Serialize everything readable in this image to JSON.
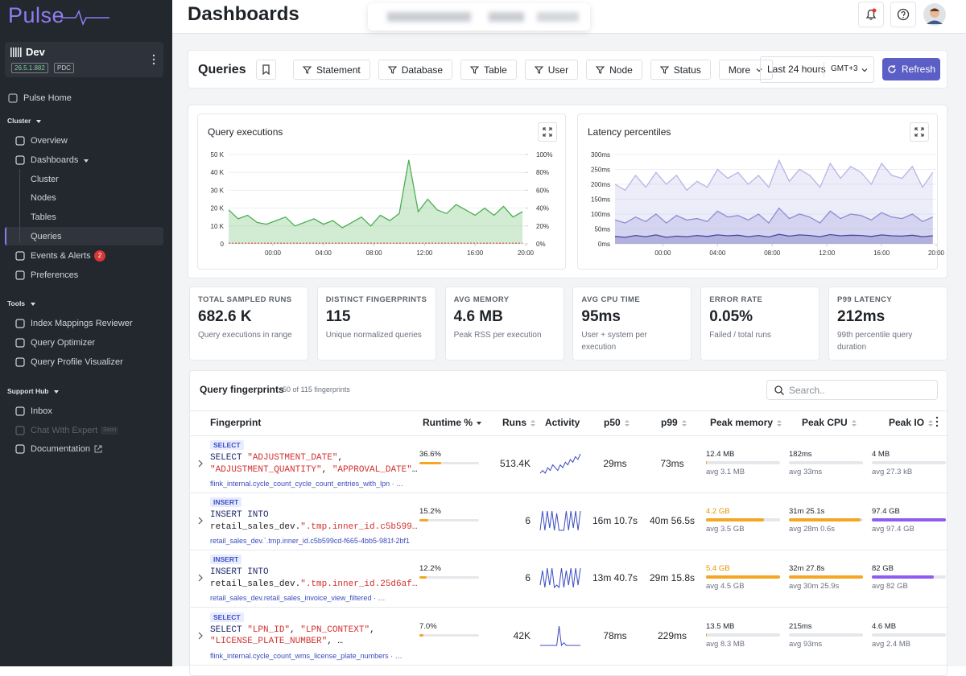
{
  "sidebar": {
    "logo": "Pulse",
    "env": {
      "name": "Dev",
      "version": "26.5.1.882",
      "tag": "PDC"
    },
    "home": "Pulse Home",
    "sections": [
      {
        "title": "Cluster",
        "items": [
          {
            "label": "Overview"
          },
          {
            "label": "Dashboards",
            "children": [
              {
                "label": "Cluster"
              },
              {
                "label": "Nodes"
              },
              {
                "label": "Tables"
              },
              {
                "label": "Queries",
                "active": true
              }
            ]
          },
          {
            "label": "Events & Alerts",
            "badge": 2
          },
          {
            "label": "Preferences"
          }
        ]
      },
      {
        "title": "Tools",
        "items": [
          {
            "label": "Index Mappings Reviewer"
          },
          {
            "label": "Query Optimizer"
          },
          {
            "label": "Query Profile Visualizer"
          }
        ]
      },
      {
        "title": "Support Hub",
        "items": [
          {
            "label": "Inbox"
          },
          {
            "label": "Chat With Expert",
            "badge": "Soon",
            "disabled": true
          },
          {
            "label": "Documentation",
            "external": true
          }
        ]
      }
    ]
  },
  "header": {
    "title": "Dashboards"
  },
  "toolbar": {
    "title": "Queries",
    "filters": [
      "Statement",
      "Database",
      "Table",
      "User",
      "Node",
      "Status"
    ],
    "more": "More",
    "range": "Last 24 hours",
    "timezone": "GMT+3",
    "refresh": "Refresh"
  },
  "charts": [
    {
      "type": "area",
      "title": "Query executions",
      "x": [
        -3.5,
        -2.75,
        -2,
        -1.25,
        -0.5,
        0.25,
        1,
        1.75,
        2.5,
        3.25,
        4,
        4.75,
        5.5,
        6.25,
        7,
        7.75,
        8.5,
        9.25,
        10,
        10.75,
        11.5,
        12.25,
        13,
        13.75,
        14.5,
        15.25,
        16,
        16.75,
        17.5,
        18.25,
        19,
        19.75
      ],
      "xlim": [
        -3.5,
        20
      ],
      "xticks": [
        {
          "value": 0,
          "label": "00:00"
        },
        {
          "value": 4,
          "label": "04:00"
        },
        {
          "value": 8,
          "label": "08:00"
        },
        {
          "value": 12,
          "label": "12:00"
        },
        {
          "value": 16,
          "label": "16:00"
        },
        {
          "value": 20,
          "label": "20:00"
        }
      ],
      "ylim": [
        0,
        50000
      ],
      "yticks": [
        0,
        {
          "value": 10000,
          "label": "10 K"
        },
        {
          "value": 20000,
          "label": "20 K"
        },
        {
          "value": 30000,
          "label": "30 K"
        },
        {
          "value": 40000,
          "label": "40 K"
        },
        {
          "value": 50000,
          "label": "50 K"
        }
      ],
      "y2lim": [
        0,
        100
      ],
      "y2ticks": [
        {
          "value": 0,
          "label": "0%"
        },
        {
          "value": 20,
          "label": "20%"
        },
        {
          "value": 40,
          "label": "40%"
        },
        {
          "value": 60,
          "label": "60%"
        },
        {
          "value": 80,
          "label": "80%"
        },
        {
          "value": 100,
          "label": "100%"
        }
      ],
      "grid": true,
      "series": [
        {
          "color": "#4caf50",
          "values": [
            19000,
            14000,
            16000,
            12000,
            11000,
            13000,
            15000,
            10000,
            12000,
            14000,
            11000,
            13000,
            9000,
            12000,
            15000,
            10000,
            16000,
            13000,
            17000,
            47000,
            18000,
            25000,
            19000,
            17000,
            22000,
            19000,
            16000,
            20000,
            16000,
            21000,
            15000,
            18000
          ]
        },
        {
          "color": "#e53935",
          "axis": "y2",
          "style": "dotted",
          "values": [
            0.8,
            0.8,
            0.8,
            0.8,
            0.8,
            0.8,
            0.8,
            0.8,
            0.8,
            0.8,
            0.8,
            0.8,
            0.8,
            0.8,
            0.8,
            0.8,
            0.8,
            0.8,
            0.8,
            0.8,
            0.8,
            0.8,
            0.8,
            0.8,
            0.8,
            0.8,
            0.8,
            0.8,
            0.8,
            0.8,
            0.8,
            0.8
          ]
        }
      ]
    },
    {
      "type": "area",
      "title": "Latency percentiles",
      "x": [
        -3.5,
        -2.75,
        -2,
        -1.25,
        -0.5,
        0.25,
        1,
        1.75,
        2.5,
        3.25,
        4,
        4.75,
        5.5,
        6.25,
        7,
        7.75,
        8.5,
        9.25,
        10,
        10.75,
        11.5,
        12.25,
        13,
        13.75,
        14.5,
        15.25,
        16,
        16.75,
        17.5,
        18.25,
        19,
        19.75
      ],
      "xlim": [
        -3.5,
        20
      ],
      "xticks": [
        {
          "value": 0,
          "label": "00:00"
        },
        {
          "value": 4,
          "label": "04:00"
        },
        {
          "value": 8,
          "label": "08:00"
        },
        {
          "value": 12,
          "label": "12:00"
        },
        {
          "value": 16,
          "label": "16:00"
        },
        {
          "value": 20,
          "label": "20:00"
        }
      ],
      "ylim": [
        0,
        300
      ],
      "yticks": [
        {
          "value": 0,
          "label": "0ms"
        },
        {
          "value": 50,
          "label": "50ms"
        },
        {
          "value": 100,
          "label": "100ms"
        },
        {
          "value": 150,
          "label": "150ms"
        },
        {
          "value": 200,
          "label": "200ms"
        },
        {
          "value": 250,
          "label": "250ms"
        },
        {
          "value": 300,
          "label": "300ms"
        }
      ],
      "grid": true,
      "series": [
        {
          "color": "#b7b4e6",
          "values": [
            200,
            180,
            230,
            190,
            240,
            200,
            230,
            180,
            210,
            190,
            250,
            220,
            240,
            200,
            230,
            190,
            280,
            210,
            250,
            230,
            190,
            270,
            220,
            260,
            240,
            200,
            270,
            230,
            220,
            260,
            190,
            240
          ]
        },
        {
          "color": "#8f8bd6",
          "values": [
            80,
            70,
            90,
            75,
            100,
            70,
            95,
            80,
            85,
            75,
            110,
            90,
            95,
            80,
            100,
            70,
            120,
            85,
            100,
            90,
            70,
            110,
            85,
            100,
            95,
            80,
            105,
            90,
            85,
            100,
            75,
            90
          ]
        },
        {
          "color": "#4b46a8",
          "values": [
            25,
            22,
            28,
            24,
            30,
            22,
            26,
            24,
            28,
            25,
            30,
            27,
            29,
            24,
            28,
            23,
            32,
            26,
            30,
            28,
            24,
            31,
            27,
            29,
            28,
            25,
            30,
            27,
            26,
            29,
            24,
            27
          ]
        }
      ]
    }
  ],
  "stats": [
    {
      "label": "TOTAL SAMPLED RUNS",
      "value": "682.6 K",
      "note": "Query executions in range"
    },
    {
      "label": "DISTINCT FINGERPRINTS",
      "value": "115",
      "note": "Unique normalized queries"
    },
    {
      "label": "AVG MEMORY",
      "value": "4.6 MB",
      "note": "Peak RSS per execution"
    },
    {
      "label": "AVG CPU TIME",
      "value": "95ms",
      "note": "User + system per execution"
    },
    {
      "label": "ERROR RATE",
      "value": "0.05%",
      "note": "Failed / total runs"
    },
    {
      "label": "P99 LATENCY",
      "value": "212ms",
      "note": "99th percentile query duration"
    }
  ],
  "fingerprints": {
    "title": "Query fingerprints",
    "count": "50 of 115 fingerprints",
    "search": "Search..",
    "columns": [
      "Fingerprint",
      "Runtime %",
      "Runs",
      "Activity",
      "p50",
      "p99",
      "Peak memory",
      "Peak CPU",
      "Peak IO"
    ],
    "rows": [
      {
        "kind": "SELECT",
        "query": [
          "SELECT \"ADJUSTMENT_DATE\",",
          "\"ADJUSTMENT_QUANTITY\", \"APPROVAL_DATE\"…"
        ],
        "source": "flink_internal.cycle_count_cycle_count_entries_with_lpn · …",
        "runtime": {
          "value": 36.6,
          "label": "36.6%"
        },
        "runs": "513.4K",
        "activity": [
          3,
          4,
          3,
          5,
          4,
          6,
          5,
          4,
          6,
          5,
          7,
          6,
          8,
          7,
          9,
          8,
          10
        ],
        "p50": "29ms",
        "p99": "73ms",
        "memory": {
          "value": 12400000,
          "label": "12.4 MB",
          "avg": "avg 3.1 MB"
        },
        "cpu": {
          "value": 0.182,
          "label": "182ms",
          "avg": "avg 33ms"
        },
        "io": {
          "value": 4000000,
          "label": "4 MB",
          "avg": "avg 27.3 kB"
        }
      },
      {
        "kind": "INSERT",
        "query": [
          "INSERT INTO",
          "retail_sales_dev.\".tmp.inner_id.c5b599…"
        ],
        "source": "retail_sales_dev.`.tmp.inner_id.c5b599cd-f665-4bb5-981f-2bf1",
        "runtime": {
          "value": 15.2,
          "label": "15.2%"
        },
        "runs": "6",
        "activity": [
          1,
          9,
          1,
          9,
          2,
          9,
          1,
          8,
          1,
          1,
          1,
          9,
          1,
          9,
          2,
          9,
          1,
          9
        ],
        "p50": "16m 10.7s",
        "p99": "40m 56.5s",
        "memory": {
          "value": 4200000000,
          "label": "4.2 GB",
          "avg": "avg 3.5 GB"
        },
        "cpu": {
          "value": 1885.1,
          "label": "31m 25.1s",
          "avg": "avg 28m 0.6s"
        },
        "io": {
          "value": 97400000000,
          "label": "97.4 GB",
          "avg": "avg 97.4 GB"
        }
      },
      {
        "kind": "INSERT",
        "query": [
          "INSERT INTO",
          "retail_sales_dev.\".tmp.inner_id.25d6af…"
        ],
        "source": "retail_sales_dev.retail_sales_invoice_view_filtered · …",
        "runtime": {
          "value": 12.2,
          "label": "12.2%"
        },
        "runs": "6",
        "activity": [
          2,
          8,
          1,
          9,
          2,
          9,
          1,
          2,
          1,
          9,
          1,
          8,
          2,
          9,
          1,
          9,
          2,
          9
        ],
        "p50": "13m 40.7s",
        "p99": "29m 15.8s",
        "memory": {
          "value": 5400000000,
          "label": "5.4 GB",
          "avg": "avg 4.5 GB"
        },
        "cpu": {
          "value": 1947.8,
          "label": "32m 27.8s",
          "avg": "avg 30m 25.9s"
        },
        "io": {
          "value": 82000000000,
          "label": "82 GB",
          "avg": "avg 82 GB"
        }
      },
      {
        "kind": "SELECT",
        "query": [
          "SELECT \"LPN_ID\", \"LPN_CONTEXT\",",
          "\"LICENSE_PLATE_NUMBER\", …"
        ],
        "source": "flink_internal.cycle_count_wms_license_plate_numbers · …",
        "runtime": {
          "value": 7.0,
          "label": "7.0%"
        },
        "runs": "42K",
        "activity": [
          2,
          2,
          2,
          2,
          2,
          2,
          2,
          2,
          9,
          2,
          3,
          2,
          2,
          2,
          2,
          2,
          2,
          2
        ],
        "p50": "78ms",
        "p99": "229ms",
        "memory": {
          "value": 13500000,
          "label": "13.5 MB",
          "avg": "avg 8.3 MB"
        },
        "cpu": {
          "value": 0.215,
          "label": "215ms",
          "avg": "avg 93ms"
        },
        "io": {
          "value": 4600000,
          "label": "4.6 MB",
          "avg": "avg 2.4 MB"
        }
      }
    ]
  }
}
